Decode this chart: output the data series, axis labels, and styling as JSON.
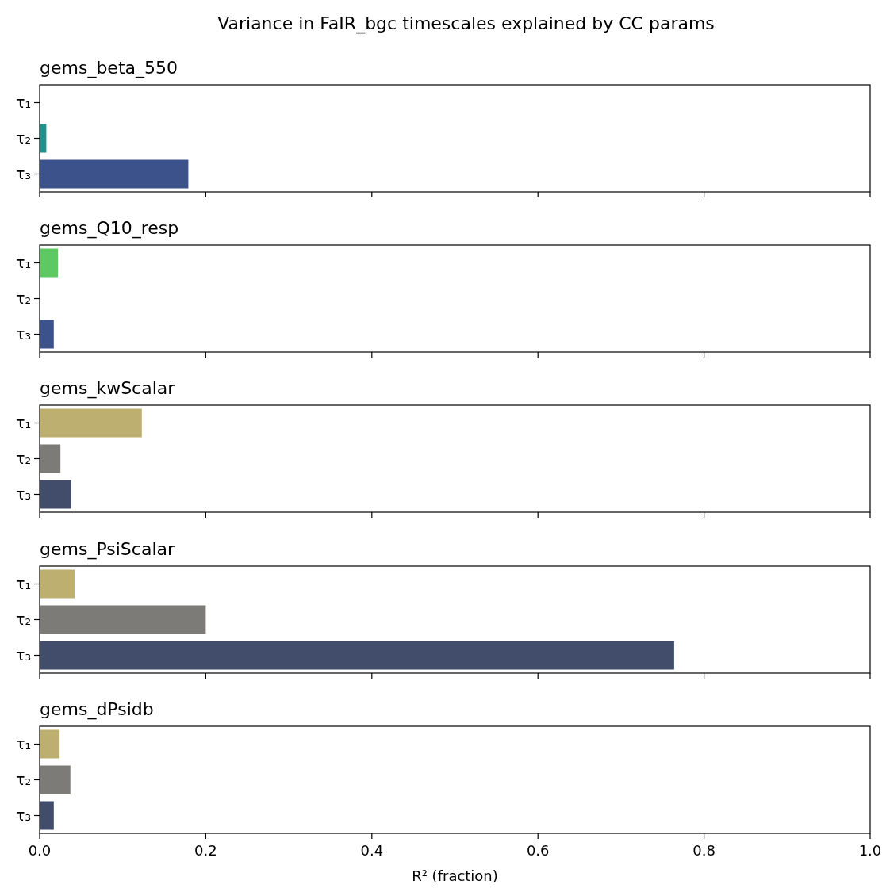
{
  "chart_data": [
    {
      "type": "bar",
      "orientation": "horizontal",
      "title": "gems_beta_550",
      "annotations": [
        "Variance in FaIR_bgc timescales explained by CC params"
      ],
      "categories": [
        "τ₁",
        "τ₂",
        "τ₃"
      ],
      "values": [
        0,
        0.008,
        0.179
      ],
      "colors": [
        "#5ec962",
        "#21918c",
        "#3b528b"
      ],
      "xlim": [
        0,
        1
      ],
      "xticks": [
        {
          "value": 0,
          "label": null
        },
        {
          "value": 0.2,
          "label": null
        },
        {
          "value": 0.4,
          "label": null
        },
        {
          "value": 0.6,
          "label": null
        },
        {
          "value": 0.8,
          "label": null
        },
        {
          "value": 1,
          "label": null
        }
      ],
      "tick_labels": "y"
    },
    {
      "type": "bar",
      "orientation": "horizontal",
      "title": "gems_Q10_resp",
      "categories": [
        "τ₁",
        "τ₂",
        "τ₃"
      ],
      "values": [
        0.022,
        0,
        0.017
      ],
      "colors": [
        "#5ec962",
        "#21918c",
        "#3b528b"
      ],
      "xlim": [
        0,
        1
      ],
      "xticks": [
        {
          "value": 0,
          "label": null
        },
        {
          "value": 0.2,
          "label": null
        },
        {
          "value": 0.4,
          "label": null
        },
        {
          "value": 0.6,
          "label": null
        },
        {
          "value": 0.8,
          "label": null
        },
        {
          "value": 1,
          "label": null
        }
      ],
      "tick_labels": "y"
    },
    {
      "type": "bar",
      "orientation": "horizontal",
      "title": "gems_kwScalar",
      "categories": [
        "τ₁",
        "τ₂",
        "τ₃"
      ],
      "values": [
        0.123,
        0.025,
        0.038
      ],
      "colors": [
        "#bcaf6f",
        "#7c7b78",
        "#414d6b"
      ],
      "xlim": [
        0,
        1
      ],
      "xticks": [
        {
          "value": 0,
          "label": null
        },
        {
          "value": 0.2,
          "label": null
        },
        {
          "value": 0.4,
          "label": null
        },
        {
          "value": 0.6,
          "label": null
        },
        {
          "value": 0.8,
          "label": null
        },
        {
          "value": 1,
          "label": null
        }
      ],
      "tick_labels": "y"
    },
    {
      "type": "bar",
      "orientation": "horizontal",
      "title": "gems_PsiScalar",
      "categories": [
        "τ₁",
        "τ₂",
        "τ₃"
      ],
      "values": [
        0.042,
        0.2,
        0.764
      ],
      "colors": [
        "#bcaf6f",
        "#7c7b78",
        "#414d6b"
      ],
      "xlim": [
        0,
        1
      ],
      "xticks": [
        {
          "value": 0,
          "label": null
        },
        {
          "value": 0.2,
          "label": null
        },
        {
          "value": 0.4,
          "label": null
        },
        {
          "value": 0.6,
          "label": null
        },
        {
          "value": 0.8,
          "label": null
        },
        {
          "value": 1,
          "label": null
        }
      ],
      "tick_labels": "y"
    },
    {
      "type": "bar",
      "orientation": "horizontal",
      "title": "gems_dPsidb",
      "xlabel": "R² (fraction)",
      "categories": [
        "τ₁",
        "τ₂",
        "τ₃"
      ],
      "values": [
        0.024,
        0.037,
        0.017
      ],
      "colors": [
        "#bcaf6f",
        "#7c7b78",
        "#414d6b"
      ],
      "xlim": [
        0,
        1
      ],
      "xticks": [
        {
          "value": 0,
          "label": "0.0"
        },
        {
          "value": 0.2,
          "label": "0.2"
        },
        {
          "value": 0.4,
          "label": "0.4"
        },
        {
          "value": 0.6,
          "label": "0.6"
        },
        {
          "value": 0.8,
          "label": "0.8"
        },
        {
          "value": 1,
          "label": "1.0"
        }
      ]
    }
  ]
}
